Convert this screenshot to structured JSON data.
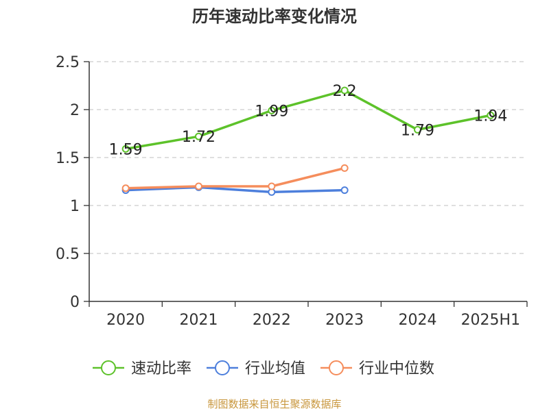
{
  "chart_data": {
    "type": "line",
    "title": "历年速动比率变化情况",
    "categories": [
      "2020",
      "2021",
      "2022",
      "2023",
      "2024",
      "2025H1"
    ],
    "y_ticks": [
      "0",
      "0.5",
      "1",
      "1.5",
      "2",
      "2.5"
    ],
    "ylim": [
      0,
      2.5
    ],
    "grid": true,
    "legend_position": "bottom",
    "series": [
      {
        "name": "速动比率",
        "color": "#5dc22a",
        "values": [
          1.59,
          1.72,
          1.99,
          2.2,
          1.79,
          1.94
        ],
        "labels": [
          "1.59",
          "1.72",
          "1.99",
          "2.2",
          "1.79",
          "1.94"
        ]
      },
      {
        "name": "行业均值",
        "color": "#4d7fdc",
        "values": [
          1.16,
          1.19,
          1.14,
          1.16,
          null,
          null
        ]
      },
      {
        "name": "行业中位数",
        "color": "#f58d5c",
        "values": [
          1.18,
          1.2,
          1.2,
          1.39,
          null,
          null
        ]
      }
    ]
  },
  "source": "制图数据来自恒生聚源数据库"
}
